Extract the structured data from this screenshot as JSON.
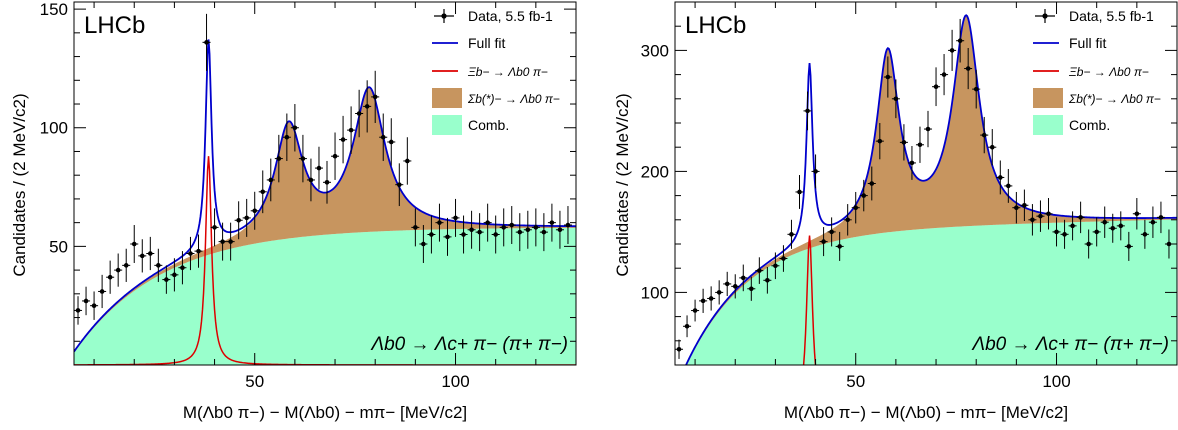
{
  "chart_data": [
    {
      "type": "scatter",
      "title": "LHCb",
      "decay_label": "Λb0 → Λc+ π− (π+ π−)",
      "xlabel": "M(Λb0 π−) − M(Λb0) − mπ− [MeV/c2]",
      "ylabel": "Candidates / (2 MeV/c2)",
      "xlim": [
        5,
        130
      ],
      "ylim": [
        0,
        153
      ],
      "xticks": [
        "50",
        "100"
      ],
      "yticks": [
        "50",
        "100",
        "150"
      ],
      "xtick_values": [
        50,
        100
      ],
      "ytick_values": [
        50,
        100,
        150
      ],
      "legend": {
        "position": "top-right",
        "entries": [
          {
            "key": "data",
            "label": "Data, 5.5 fb-1"
          },
          {
            "key": "fit",
            "label": "Full fit"
          },
          {
            "key": "xi",
            "label": "Ξb− → Λb0 π−"
          },
          {
            "key": "sigma",
            "label": "Σb(*)− → Λb0 π−"
          },
          {
            "key": "comb",
            "label": "Comb."
          }
        ]
      },
      "colors": {
        "data": "#000000",
        "fit": "#0000cc",
        "xi": "#dd0000",
        "sigma": "#c7955f",
        "comb": "#99ffcc"
      },
      "model": {
        "comb": {
          "a": 58,
          "slope": 0.0,
          "tau": 22,
          "x0": 3
        },
        "xi": {
          "mean": 38.5,
          "width": 0.9,
          "height": 88
        },
        "sigma": [
          {
            "mean": 58.5,
            "width": 4.2,
            "height": 46
          },
          {
            "mean": 78.5,
            "width": 4.8,
            "height": 59
          }
        ]
      },
      "data_points": {
        "x": [
          6,
          8,
          10,
          12,
          14,
          16,
          18,
          20,
          22,
          24,
          26,
          28,
          30,
          32,
          34,
          36,
          38,
          40,
          42,
          44,
          46,
          48,
          50,
          52,
          54,
          56,
          58,
          60,
          62,
          64,
          66,
          68,
          70,
          72,
          74,
          76,
          78,
          80,
          82,
          84,
          86,
          88,
          90,
          92,
          94,
          96,
          98,
          100,
          102,
          104,
          106,
          108,
          110,
          112,
          114,
          116,
          118,
          120,
          122,
          124,
          126,
          128
        ],
        "y": [
          23,
          27,
          25,
          31,
          37,
          40,
          42,
          51,
          46,
          47,
          42,
          36,
          38,
          41,
          47,
          48,
          136,
          58,
          52,
          52,
          61,
          62,
          65,
          73,
          78,
          87,
          96,
          100,
          87,
          78,
          83,
          77,
          88,
          95,
          99,
          106,
          109,
          113,
          96,
          94,
          76,
          86,
          58,
          51,
          55,
          60,
          54,
          62,
          55,
          57,
          56,
          60,
          55,
          58,
          59,
          56,
          57,
          58,
          56,
          60,
          57,
          59
        ],
        "yerr": [
          6,
          6,
          6,
          7,
          7,
          7,
          7,
          8,
          7,
          7,
          7,
          6,
          7,
          7,
          7,
          7,
          12,
          8,
          8,
          8,
          8,
          8,
          8,
          9,
          9,
          10,
          10,
          10,
          10,
          9,
          9,
          9,
          10,
          10,
          10,
          10,
          11,
          11,
          10,
          10,
          9,
          10,
          8,
          8,
          8,
          8,
          8,
          8,
          8,
          8,
          8,
          8,
          8,
          8,
          8,
          8,
          8,
          8,
          8,
          8,
          8,
          8
        ]
      }
    },
    {
      "type": "scatter",
      "title": "LHCb",
      "decay_label": "Λb0 → Λc+ π− (π+ π−)",
      "xlabel": "M(Λb0 π−) − M(Λb0) − mπ− [MeV/c2]",
      "ylabel": "Candidates / (2 MeV/c2)",
      "xlim": [
        5,
        130
      ],
      "ylim": [
        40,
        340
      ],
      "xticks": [
        "50",
        "100"
      ],
      "yticks": [
        "100",
        "200",
        "300"
      ],
      "xtick_values": [
        50,
        100
      ],
      "ytick_values": [
        100,
        200,
        300
      ],
      "legend": {
        "position": "top-right",
        "entries": [
          {
            "key": "data",
            "label": "Data, 5.5 fb-1"
          },
          {
            "key": "fit",
            "label": "Full fit"
          },
          {
            "key": "xi",
            "label": "Ξb− → Λb0 π−"
          },
          {
            "key": "sigma",
            "label": "Σb(*)− → Λb0 π−"
          },
          {
            "key": "comb",
            "label": "Comb."
          }
        ]
      },
      "colors": {
        "data": "#000000",
        "fit": "#0000cc",
        "xi": "#dd0000",
        "sigma": "#c7955f",
        "comb": "#99ffcc"
      },
      "model": {
        "comb": {
          "a": 150,
          "slope": 0.08,
          "tau": 16,
          "x0": 3
        },
        "xi": {
          "mean": 38.5,
          "width": 0.9,
          "height": 147
        },
        "sigma": [
          {
            "mean": 58.0,
            "width": 3.4,
            "height": 145
          },
          {
            "mean": 77.5,
            "width": 4.0,
            "height": 170
          }
        ]
      },
      "data_points": {
        "x": [
          6,
          8,
          10,
          12,
          14,
          16,
          18,
          20,
          22,
          24,
          26,
          28,
          30,
          32,
          34,
          36,
          38,
          40,
          42,
          44,
          46,
          48,
          50,
          52,
          54,
          56,
          58,
          60,
          62,
          64,
          66,
          68,
          70,
          72,
          74,
          76,
          78,
          80,
          82,
          84,
          86,
          88,
          90,
          92,
          94,
          96,
          98,
          100,
          102,
          104,
          106,
          108,
          110,
          112,
          114,
          116,
          118,
          120,
          122,
          124,
          126,
          128
        ],
        "y": [
          53,
          72,
          85,
          93,
          95,
          100,
          107,
          105,
          112,
          103,
          118,
          110,
          122,
          128,
          148,
          183,
          250,
          200,
          142,
          150,
          138,
          160,
          170,
          180,
          190,
          225,
          278,
          260,
          224,
          207,
          222,
          235,
          270,
          280,
          300,
          308,
          285,
          268,
          230,
          220,
          195,
          188,
          170,
          172,
          160,
          163,
          165,
          150,
          148,
          155,
          162,
          140,
          150,
          158,
          153,
          155,
          138,
          165,
          148,
          158,
          162,
          140
        ],
        "yerr": [
          8,
          9,
          9,
          10,
          10,
          10,
          10,
          10,
          11,
          10,
          11,
          11,
          11,
          11,
          12,
          14,
          16,
          14,
          12,
          12,
          12,
          13,
          13,
          13,
          14,
          15,
          17,
          16,
          15,
          14,
          15,
          15,
          16,
          17,
          17,
          18,
          17,
          16,
          15,
          15,
          14,
          14,
          13,
          13,
          13,
          13,
          13,
          12,
          12,
          12,
          13,
          12,
          12,
          13,
          12,
          12,
          12,
          13,
          12,
          13,
          13,
          12
        ]
      }
    }
  ]
}
